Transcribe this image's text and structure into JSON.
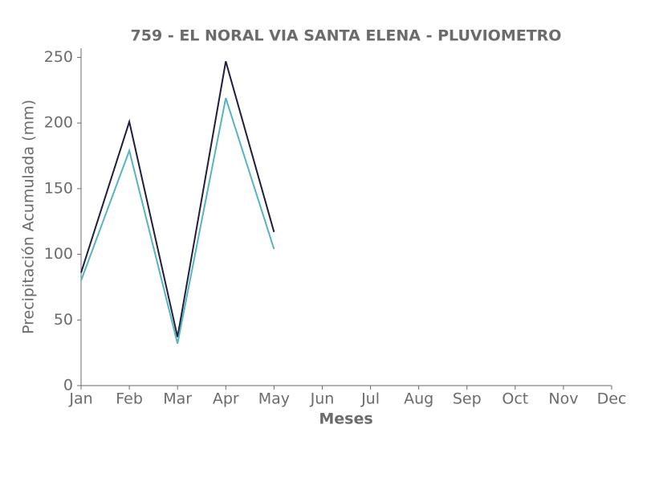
{
  "chart_data": {
    "type": "line",
    "title": "759 - EL NORAL VIA SANTA ELENA - PLUVIOMETRO",
    "x_label": "Meses",
    "y_label": "Precipitación Acumulada (mm)",
    "categories": [
      "Jan",
      "Feb",
      "Mar",
      "Apr",
      "May",
      "Jun",
      "Jul",
      "Aug",
      "Sep",
      "Oct",
      "Nov",
      "Dec"
    ],
    "series": [
      {
        "color": "#1f1d3a",
        "values": [
          86,
          201,
          37,
          247,
          117,
          null,
          null,
          null,
          null,
          null,
          null,
          null
        ]
      },
      {
        "color": "#56b4c0",
        "values": [
          80,
          179,
          32,
          219,
          104,
          null,
          null,
          null,
          null,
          null,
          null,
          null
        ]
      }
    ],
    "ylim": [
      0,
      257
    ],
    "yticks": [
      0,
      50,
      100,
      150,
      200,
      250
    ],
    "grid": false
  }
}
